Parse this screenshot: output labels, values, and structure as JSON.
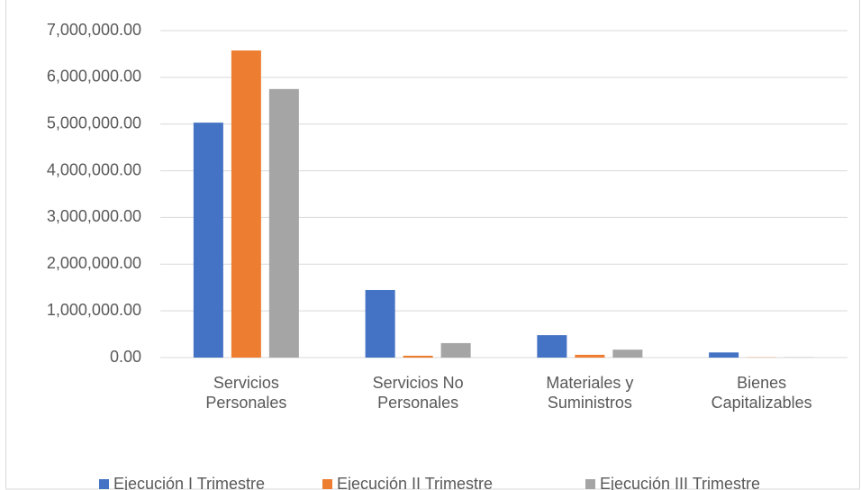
{
  "chart_data": {
    "type": "bar",
    "categories": [
      "Servicios Personales",
      "Servicios No Personales",
      "Materiales y Suministros",
      "Bienes Capitalizables"
    ],
    "series": [
      {
        "name": "Ejecución I Trimestre",
        "color": "#4472c4",
        "values": [
          5030000,
          1446000,
          480000,
          110000
        ]
      },
      {
        "name": "Ejecución II Trimestre",
        "color": "#ed7d31",
        "values": [
          6575000,
          40000,
          60000,
          5000
        ]
      },
      {
        "name": "Ejecución III Trimestre",
        "color": "#a5a5a5",
        "values": [
          5750000,
          310000,
          170000,
          5000
        ]
      }
    ],
    "ylim": [
      0,
      7000000
    ],
    "yticks": [
      {
        "value": 0,
        "label": "0.00"
      },
      {
        "value": 1000000,
        "label": "1,000,000.00"
      },
      {
        "value": 2000000,
        "label": "2,000,000.00"
      },
      {
        "value": 3000000,
        "label": "3,000,000.00"
      },
      {
        "value": 4000000,
        "label": "4,000,000.00"
      },
      {
        "value": 5000000,
        "label": "5,000,000.00"
      },
      {
        "value": 6000000,
        "label": "6,000,000.00"
      },
      {
        "value": 7000000,
        "label": "7,000,000.00"
      }
    ],
    "grid": true,
    "legend": "bottom"
  }
}
